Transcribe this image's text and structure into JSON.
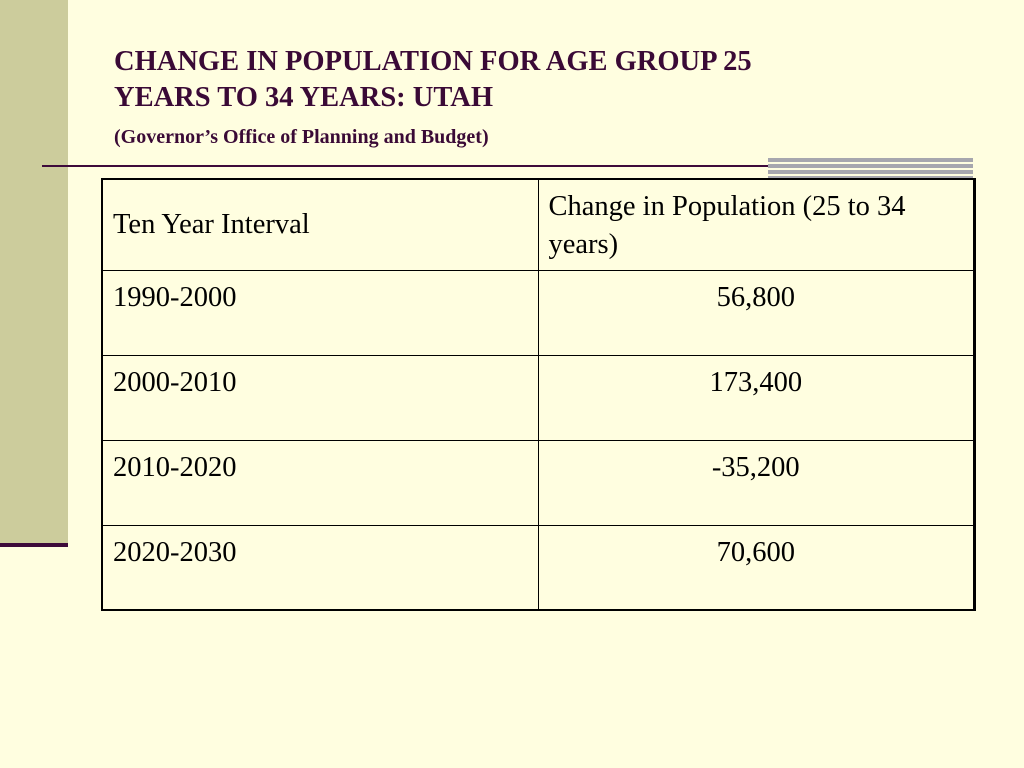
{
  "slide": {
    "title_line1": "CHANGE IN POPULATION FOR AGE GROUP 25",
    "title_line2": "YEARS TO 34 YEARS: UTAH",
    "subtitle": "(Governor’s Office of Planning and Budget)"
  },
  "table": {
    "headers": [
      "Ten Year Interval",
      "Change in Population (25 to 34 years)"
    ],
    "rows": [
      {
        "interval": "1990-2000",
        "change": "56,800"
      },
      {
        "interval": "2000-2010",
        "change": "173,400"
      },
      {
        "interval": "2010-2020",
        "change": "-35,200"
      },
      {
        "interval": "2020-2030",
        "change": "70,600"
      }
    ]
  },
  "colors": {
    "background": "#FFFEE0",
    "side_bar": "#CCCC9C",
    "accent": "#3D0A3A",
    "title_text": "#3A0A36",
    "grey_block": "#A7A7AE"
  }
}
